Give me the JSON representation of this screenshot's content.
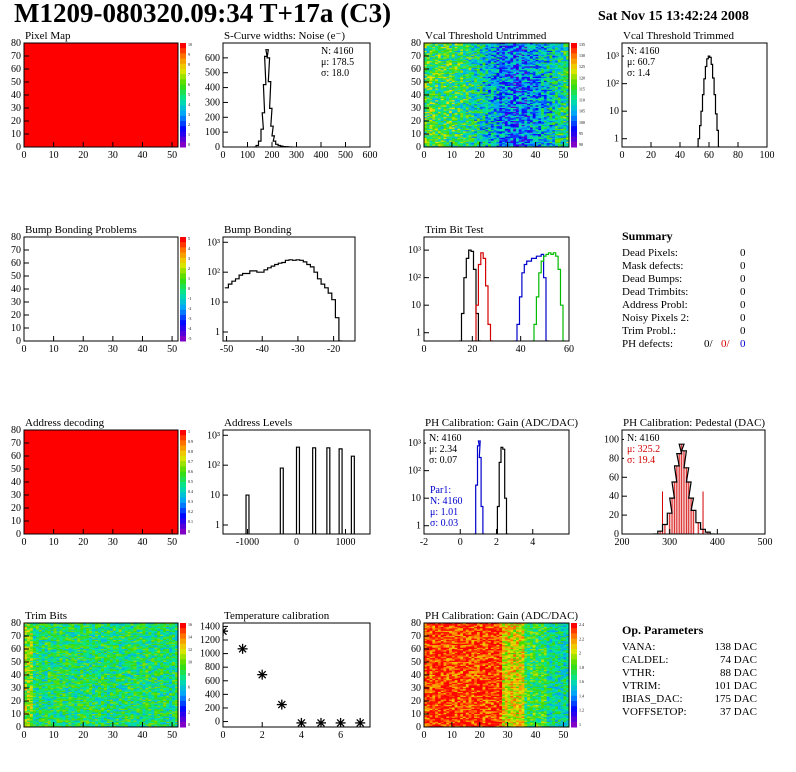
{
  "header": {
    "title": "M1209-080320.09:34 T+17a (C3)",
    "date": "Sat Nov 15 13:42:24 2008"
  },
  "colors": {
    "hist_line": "#000000",
    "bit_red": "#d40000",
    "bit_blue": "#0000cc",
    "bit_green": "#00bb00",
    "map_fill": "#ff0000",
    "pedestal_fill": "#d40000"
  },
  "summary": {
    "title": "Summary",
    "rows": [
      {
        "label": "Dead Pixels:",
        "value": "0"
      },
      {
        "label": "Mask defects:",
        "value": "0"
      },
      {
        "label": "Dead Bumps:",
        "value": "0"
      },
      {
        "label": "Dead Trimbits:",
        "value": "0"
      },
      {
        "label": "Address Probl:",
        "value": "0"
      },
      {
        "label": "Noisy Pixels 2:",
        "value": "0"
      },
      {
        "label": "Trim Probl.:",
        "value": "0"
      }
    ],
    "ph_label": "PH defects:",
    "ph_values": [
      "0/",
      "0/",
      "0"
    ]
  },
  "op_params": {
    "title": "Op. Parameters",
    "rows": [
      {
        "label": "VANA:",
        "value": "138 DAC"
      },
      {
        "label": "CALDEL:",
        "value": "74 DAC"
      },
      {
        "label": "VTHR:",
        "value": "88 DAC"
      },
      {
        "label": "VTRIM:",
        "value": "101 DAC"
      },
      {
        "label": "IBIAS_DAC:",
        "value": "175 DAC"
      },
      {
        "label": "VOFFSETOP:",
        "value": "37 DAC"
      }
    ]
  },
  "chart_data": [
    {
      "id": "pixel-map",
      "type": "heatmap",
      "title": "Pixel Map",
      "xlim": [
        0,
        52
      ],
      "ylim": [
        0,
        80
      ],
      "xticks": [
        "0",
        "10",
        "20",
        "30",
        "40",
        "50"
      ],
      "yticks": [
        "0",
        "10",
        "20",
        "30",
        "40",
        "50",
        "60",
        "70",
        "80"
      ],
      "uniform_color": "#ff0000",
      "palette_labels": [
        "10",
        "9",
        "8",
        "7",
        "6",
        "5",
        "4",
        "3",
        "2",
        "1",
        "0"
      ]
    },
    {
      "id": "noise",
      "type": "line",
      "title": "S-Curve widths: Noise (e⁻)",
      "xlim": [
        0,
        600
      ],
      "ylim": [
        0,
        700
      ],
      "xticks": [
        "0",
        "100",
        "200",
        "300",
        "400",
        "500",
        "600"
      ],
      "yticks": [
        "0",
        "100",
        "200",
        "300",
        "400",
        "500",
        "600"
      ],
      "stats": [
        "N: 4160",
        "μ: 178.5",
        "σ: 18.0"
      ],
      "x": [
        130,
        140,
        150,
        160,
        165,
        170,
        175,
        180,
        185,
        190,
        195,
        200,
        205,
        210,
        220,
        230,
        240,
        250,
        260,
        280
      ],
      "y": [
        0,
        10,
        40,
        120,
        230,
        420,
        610,
        655,
        600,
        440,
        260,
        140,
        75,
        40,
        18,
        10,
        6,
        3,
        2,
        0
      ]
    },
    {
      "id": "vcal-untrimmed",
      "type": "heatmap",
      "title": "Vcal Threshold Untrimmed",
      "xlim": [
        0,
        52
      ],
      "ylim": [
        0,
        80
      ],
      "xticks": [
        "0",
        "10",
        "20",
        "30",
        "40",
        "50"
      ],
      "yticks": [
        "0",
        "10",
        "20",
        "30",
        "40",
        "50",
        "60",
        "70",
        "80"
      ],
      "palette_labels": [
        "135",
        "130",
        "125",
        "120",
        "115",
        "110",
        "105",
        "100",
        "95",
        "90"
      ]
    },
    {
      "id": "vcal-trimmed",
      "type": "line",
      "title": "Vcal Threshold Trimmed",
      "xlim": [
        0,
        100
      ],
      "log_y": true,
      "ylim": [
        0.5,
        3000
      ],
      "xticks": [
        "0",
        "20",
        "40",
        "60",
        "80",
        "100"
      ],
      "yticks": [
        "1",
        "10",
        "10²",
        "10³"
      ],
      "ytick_values": [
        1,
        10,
        100,
        1000
      ],
      "stats": [
        "N: 4160",
        "μ: 60.7",
        "σ: 1.4"
      ],
      "x": [
        52,
        53,
        54,
        55,
        56,
        57,
        58,
        59,
        60,
        61,
        62,
        63,
        64,
        65,
        66,
        67
      ],
      "y": [
        0.5,
        1,
        3,
        10,
        40,
        150,
        420,
        800,
        1000,
        900,
        500,
        160,
        40,
        8,
        2,
        0.5
      ]
    },
    {
      "id": "bump-problems",
      "type": "heatmap",
      "title": "Bump Bonding Problems",
      "xlim": [
        0,
        52
      ],
      "ylim": [
        0,
        80
      ],
      "xticks": [
        "0",
        "10",
        "20",
        "30",
        "40",
        "50"
      ],
      "yticks": [
        "0",
        "10",
        "20",
        "30",
        "40",
        "50",
        "60",
        "70",
        "80"
      ],
      "empty": true,
      "palette_labels": [
        "5",
        "4",
        "3",
        "2",
        "1",
        "0",
        "-1",
        "-2",
        "-3",
        "-4",
        "-5"
      ]
    },
    {
      "id": "bump-bonding",
      "type": "line",
      "title": "Bump Bonding",
      "xlim": [
        -51,
        -14
      ],
      "log_y": true,
      "ylim": [
        0.5,
        1500
      ],
      "xticks": [
        "-50",
        "-40",
        "-30",
        "-20"
      ],
      "xtick_values": [
        -50,
        -40,
        -30,
        -20
      ],
      "yticks": [
        "1",
        "10",
        "10²",
        "10³"
      ],
      "ytick_values": [
        1,
        10,
        100,
        1000
      ],
      "x": [
        -50,
        -49,
        -48,
        -47,
        -46,
        -45,
        -44,
        -43,
        -42,
        -41,
        -40,
        -39,
        -38,
        -37,
        -36,
        -35,
        -34,
        -33,
        -32,
        -31,
        -30,
        -29,
        -28,
        -27,
        -26,
        -25,
        -24,
        -23,
        -22,
        -21,
        -20,
        -19,
        -18
      ],
      "y": [
        30,
        40,
        50,
        60,
        80,
        90,
        90,
        110,
        110,
        100,
        100,
        120,
        140,
        160,
        180,
        200,
        210,
        250,
        260,
        250,
        260,
        250,
        220,
        180,
        150,
        100,
        60,
        40,
        30,
        20,
        12,
        3,
        0.5
      ]
    },
    {
      "id": "trim-bit-test",
      "type": "line",
      "title": "Trim Bit Test",
      "xlim": [
        0,
        60
      ],
      "log_y": true,
      "ylim": [
        0.5,
        3000
      ],
      "xticks": [
        "0",
        "20",
        "40",
        "60"
      ],
      "yticks": [
        "1",
        "10",
        "10²",
        "10³"
      ],
      "ytick_values": [
        1,
        10,
        100,
        1000
      ],
      "series": [
        {
          "color": "#000000",
          "x": [
            15,
            16,
            17,
            18,
            19,
            20,
            21,
            22,
            23
          ],
          "y": [
            0.5,
            5,
            100,
            500,
            1000,
            900,
            200,
            5,
            0.5
          ]
        },
        {
          "color": "#d40000",
          "x": [
            21,
            22,
            23,
            24,
            25,
            26,
            27,
            28
          ],
          "y": [
            0.5,
            10,
            300,
            800,
            500,
            50,
            2,
            0.5
          ]
        },
        {
          "color": "#0000cc",
          "x": [
            38,
            39,
            40,
            41,
            42,
            43,
            44,
            45,
            46,
            47,
            48,
            49,
            50,
            51
          ],
          "y": [
            0.5,
            2,
            20,
            150,
            300,
            400,
            400,
            500,
            500,
            600,
            600,
            700,
            100,
            0.5
          ]
        },
        {
          "color": "#00bb00",
          "x": [
            45,
            46,
            47,
            48,
            49,
            50,
            51,
            52,
            53,
            54,
            55,
            56,
            57,
            58
          ],
          "y": [
            0.5,
            2,
            20,
            150,
            400,
            600,
            700,
            800,
            700,
            800,
            600,
            200,
            10,
            0.5
          ]
        }
      ]
    },
    {
      "id": "address-decoding",
      "type": "heatmap",
      "title": "Address decoding",
      "xlim": [
        0,
        52
      ],
      "ylim": [
        0,
        80
      ],
      "xticks": [
        "0",
        "10",
        "20",
        "30",
        "40",
        "50"
      ],
      "yticks": [
        "0",
        "10",
        "20",
        "30",
        "40",
        "50",
        "60",
        "70",
        "80"
      ],
      "uniform_color": "#ff0000",
      "palette_labels": [
        "1",
        "0.9",
        "0.8",
        "0.7",
        "0.6",
        "0.5",
        "0.4",
        "0.3",
        "0.2",
        "0.1",
        "0"
      ]
    },
    {
      "id": "address-levels",
      "type": "line",
      "title": "Address Levels",
      "xlim": [
        -1500,
        1500
      ],
      "log_y": true,
      "ylim": [
        0.5,
        1500
      ],
      "xticks": [
        "-1000",
        "0",
        "1000"
      ],
      "xtick_values": [
        -1000,
        0,
        1000
      ],
      "yticks": [
        "1",
        "10",
        "10²",
        "10³"
      ],
      "ytick_values": [
        1,
        10,
        100,
        1000
      ],
      "peaks": [
        {
          "x": -1000,
          "h": 10
        },
        {
          "x": -300,
          "h": 80
        },
        {
          "x": 30,
          "h": 400
        },
        {
          "x": 360,
          "h": 380
        },
        {
          "x": 650,
          "h": 380
        },
        {
          "x": 900,
          "h": 350
        },
        {
          "x": 1150,
          "h": 200
        }
      ]
    },
    {
      "id": "ph-gain",
      "type": "line",
      "title": "PH Calibration: Gain (ADC/DAC)",
      "xlim": [
        -2,
        6
      ],
      "log_y": true,
      "ylim": [
        0.5,
        3000
      ],
      "xticks": [
        "-2",
        "0",
        "2",
        "4"
      ],
      "xtick_values": [
        -2,
        0,
        2,
        4
      ],
      "yticks": [
        "1",
        "10",
        "10²",
        "10³"
      ],
      "ytick_values": [
        1,
        10,
        100,
        1000
      ],
      "stats": [
        "N: 4160",
        "μ: 2.34",
        "σ: 0.07"
      ],
      "stats2": [
        "Par1:",
        "N: 4160",
        "μ: 1.01",
        "σ: 0.03"
      ],
      "series": [
        {
          "color": "#000000",
          "x": [
            2.0,
            2.1,
            2.2,
            2.3,
            2.4,
            2.5,
            2.6
          ],
          "y": [
            0.5,
            5,
            200,
            700,
            600,
            10,
            0.5
          ]
        },
        {
          "color": "#0000cc",
          "x": [
            0.8,
            0.9,
            1.0,
            1.05,
            1.1,
            1.2,
            1.3
          ],
          "y": [
            0.5,
            30,
            800,
            1200,
            300,
            5,
            0.5
          ]
        }
      ]
    },
    {
      "id": "ph-pedestal",
      "type": "line",
      "title": "PH Calibration: Pedestal (DAC)",
      "xlim": [
        200,
        500
      ],
      "ylim": [
        0,
        110
      ],
      "xticks": [
        "200",
        "300",
        "400",
        "500"
      ],
      "yticks": [
        "0",
        "20",
        "40",
        "60",
        "80",
        "100"
      ],
      "stats": [
        "N: 4160",
        "μ: 325.2",
        "σ: 19.4"
      ],
      "x": [
        270,
        280,
        290,
        300,
        305,
        310,
        315,
        320,
        325,
        330,
        335,
        340,
        345,
        350,
        360,
        370,
        380,
        390
      ],
      "y": [
        0,
        3,
        10,
        22,
        38,
        55,
        72,
        85,
        95,
        88,
        70,
        55,
        38,
        25,
        12,
        5,
        2,
        0
      ]
    },
    {
      "id": "trim-bits",
      "type": "heatmap",
      "title": "Trim Bits",
      "xlim": [
        0,
        52
      ],
      "ylim": [
        0,
        80
      ],
      "xticks": [
        "0",
        "10",
        "20",
        "30",
        "40",
        "50"
      ],
      "yticks": [
        "0",
        "10",
        "20",
        "30",
        "40",
        "50",
        "60",
        "70",
        "80"
      ],
      "palette_labels": [
        "16",
        "14",
        "12",
        "10",
        "8",
        "6",
        "4",
        "2",
        "0"
      ]
    },
    {
      "id": "temperature",
      "type": "scatter",
      "title": "Temperature calibration",
      "xlim": [
        0,
        7.5
      ],
      "ylim": [
        -80,
        1450
      ],
      "xticks": [
        "0",
        "2",
        "4",
        "6"
      ],
      "xtick_values": [
        0,
        2,
        4,
        6
      ],
      "yticks": [
        "0",
        "200",
        "400",
        "600",
        "800",
        "1000",
        "1200",
        "1400"
      ],
      "ytick_values": [
        0,
        200,
        400,
        600,
        800,
        1000,
        1200,
        1400
      ],
      "x": [
        0,
        1,
        2,
        3,
        4,
        5,
        6,
        7
      ],
      "y": [
        1330,
        1070,
        690,
        250,
        -20,
        -20,
        -20,
        -20
      ]
    },
    {
      "id": "ph-gain-map",
      "type": "heatmap",
      "title": "PH Calibration: Gain (ADC/DAC)",
      "xlim": [
        0,
        52
      ],
      "ylim": [
        0,
        80
      ],
      "xticks": [
        "0",
        "10",
        "20",
        "30",
        "40",
        "50"
      ],
      "yticks": [
        "0",
        "10",
        "20",
        "30",
        "40",
        "50",
        "60",
        "70",
        "80"
      ],
      "palette_labels": [
        "2.4",
        "2.2",
        "2",
        "1.8",
        "1.6",
        "1.4",
        "1.2",
        "1"
      ]
    }
  ]
}
